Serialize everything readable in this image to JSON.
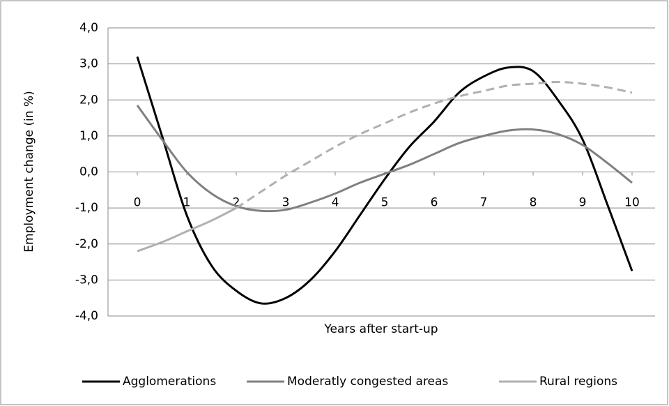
{
  "chart_data": {
    "type": "line",
    "y_axis_label": "Employment change (in %)",
    "x_axis_label": "Years after start-up",
    "x": [
      0,
      0.5,
      1,
      1.5,
      2,
      2.5,
      3,
      3.5,
      4,
      4.5,
      5,
      5.5,
      6,
      6.5,
      7,
      7.5,
      8,
      8.5,
      9,
      9.5,
      10
    ],
    "series": [
      {
        "name": "Agglomerations",
        "color": "#000000",
        "values": [
          3.2,
          1.0,
          -1.2,
          -2.6,
          -3.3,
          -3.65,
          -3.5,
          -3.0,
          -2.2,
          -1.2,
          -0.2,
          0.7,
          1.4,
          2.2,
          2.65,
          2.9,
          2.8,
          2.0,
          0.9,
          -0.9,
          -2.75
        ]
      },
      {
        "name": "Moderatly congested areas",
        "color": "#808080",
        "values": [
          1.85,
          0.9,
          0.0,
          -0.6,
          -0.95,
          -1.08,
          -1.05,
          -0.85,
          -0.6,
          -0.3,
          -0.05,
          0.2,
          0.5,
          0.8,
          1.0,
          1.15,
          1.18,
          1.05,
          0.75,
          0.25,
          -0.3
        ]
      },
      {
        "name": "Rural regions",
        "color": "#b0b0b0",
        "dashed_from": 2,
        "values": [
          -2.2,
          -1.95,
          -1.65,
          -1.35,
          -1.0,
          -0.55,
          -0.1,
          0.3,
          0.7,
          1.05,
          1.35,
          1.65,
          1.9,
          2.1,
          2.25,
          2.4,
          2.45,
          2.5,
          2.45,
          2.35,
          2.2
        ]
      }
    ],
    "xlim": [
      0,
      10
    ],
    "xticks": [
      0,
      1,
      2,
      3,
      4,
      5,
      6,
      7,
      8,
      9,
      10
    ],
    "ylim": [
      -4,
      4
    ],
    "yticks": [
      {
        "value": -4,
        "label": "-4,0"
      },
      {
        "value": -3,
        "label": "-3,0"
      },
      {
        "value": -2,
        "label": "-2,0"
      },
      {
        "value": -1,
        "label": "-1,0"
      },
      {
        "value": 0,
        "label": "0,0"
      },
      {
        "value": 1,
        "label": "1,0"
      },
      {
        "value": 2,
        "label": "2,0"
      },
      {
        "value": 3,
        "label": "3,0"
      },
      {
        "value": 4,
        "label": "4,0"
      }
    ],
    "grid": true,
    "legend": "bottom"
  }
}
